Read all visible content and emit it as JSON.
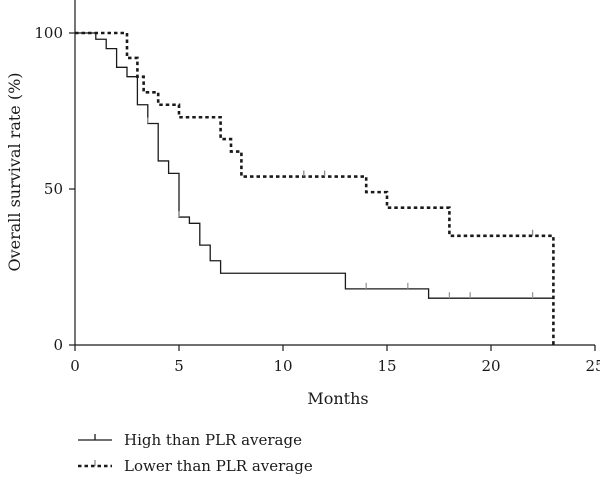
{
  "chart_data": {
    "type": "line",
    "subtype": "kaplan-meier step",
    "title": "",
    "xlabel": "Months",
    "ylabel": "Overall survival rate (%)",
    "xlim": [
      0,
      25
    ],
    "ylim": [
      0,
      100
    ],
    "x_ticks": [
      "0",
      "5",
      "10",
      "15",
      "20",
      "25"
    ],
    "y_ticks": [
      "0",
      "50",
      "100"
    ],
    "grid": false,
    "legend_position": "bottom-left",
    "series": [
      {
        "name": "High than PLR average",
        "line_style": "solid",
        "color": "#1a1a1a",
        "steps": [
          [
            0,
            100
          ],
          [
            1,
            98
          ],
          [
            1.5,
            95
          ],
          [
            2,
            89
          ],
          [
            2.5,
            86
          ],
          [
            3,
            77
          ],
          [
            3.5,
            71
          ],
          [
            4,
            59
          ],
          [
            4.5,
            55
          ],
          [
            5,
            41
          ],
          [
            5.5,
            39
          ],
          [
            6,
            32
          ],
          [
            6.5,
            27
          ],
          [
            7,
            23
          ],
          [
            13,
            18
          ],
          [
            17,
            15
          ],
          [
            23,
            15
          ]
        ],
        "censored": [
          3.5,
          5,
          14,
          16,
          18,
          19,
          22
        ]
      },
      {
        "name": "Lower than PLR average",
        "line_style": "dashed",
        "color": "#1a1a1a",
        "steps": [
          [
            0,
            100
          ],
          [
            2.5,
            92
          ],
          [
            3,
            86
          ],
          [
            3.3,
            81
          ],
          [
            4,
            77
          ],
          [
            5,
            73
          ],
          [
            7,
            66
          ],
          [
            7.5,
            62
          ],
          [
            8,
            54
          ],
          [
            14,
            49
          ],
          [
            15,
            44
          ],
          [
            18,
            35
          ],
          [
            23,
            0
          ]
        ],
        "censored": [
          11,
          12,
          22
        ]
      }
    ]
  }
}
